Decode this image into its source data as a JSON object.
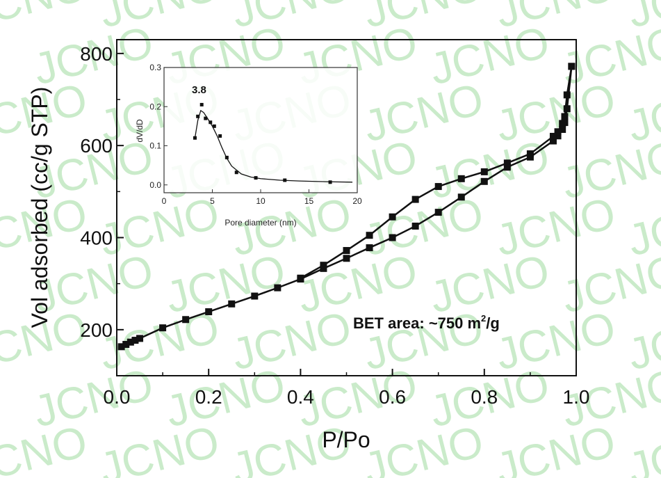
{
  "watermark": {
    "text": "JCNO",
    "color": "#9fdc9f"
  },
  "chart_data": [
    {
      "type": "line",
      "xlabel": "P/Po",
      "ylabel": "Vol adsorbed (cc/g STP)",
      "xlim": [
        0.0,
        1.0
      ],
      "ylim": [
        100,
        830
      ],
      "xticks": [
        0.0,
        0.2,
        0.4,
        0.6,
        0.8,
        1.0
      ],
      "xtick_labels": [
        "0.0",
        "0.2",
        "0.4",
        "0.6",
        "0.8",
        "1.0"
      ],
      "yticks": [
        200,
        400,
        600,
        800
      ],
      "ytick_labels": [
        "200",
        "400",
        "600",
        "800"
      ],
      "grid": false,
      "marker": "square",
      "color": "#111111",
      "annotation": {
        "text": "BET area: ~750 m",
        "sup": "2",
        "suffix": "/g"
      },
      "series": [
        {
          "x": [
            0.01,
            0.02,
            0.03,
            0.04,
            0.05,
            0.1,
            0.15,
            0.2,
            0.25,
            0.3,
            0.35,
            0.4,
            0.45,
            0.5,
            0.55,
            0.6,
            0.65,
            0.7,
            0.75,
            0.8,
            0.85,
            0.9,
            0.95,
            0.96,
            0.97,
            0.975,
            0.98,
            0.99
          ],
          "y": [
            163,
            168,
            173,
            177,
            181,
            204,
            222,
            239,
            256,
            273,
            291,
            310,
            333,
            355,
            378,
            400,
            425,
            455,
            488,
            522,
            553,
            575,
            610,
            621,
            635,
            650,
            680,
            772
          ]
        },
        {
          "x": [
            0.99,
            0.98,
            0.975,
            0.97,
            0.96,
            0.95,
            0.9,
            0.85,
            0.8,
            0.75,
            0.7,
            0.65,
            0.6,
            0.55,
            0.5,
            0.45,
            0.4
          ],
          "y": [
            772,
            710,
            663,
            648,
            630,
            620,
            582,
            562,
            543,
            528,
            511,
            483,
            445,
            405,
            372,
            340,
            312
          ]
        }
      ]
    },
    {
      "type": "line",
      "xlabel": "Pore diameter (nm)",
      "ylabel": "dV/dD",
      "xlim": [
        0,
        20
      ],
      "ylim": [
        -0.02,
        0.3
      ],
      "xticks": [
        0,
        5,
        10,
        15,
        20
      ],
      "xtick_labels": [
        "0",
        "5",
        "10",
        "15",
        "20"
      ],
      "yticks": [
        0.0,
        0.1,
        0.2,
        0.3
      ],
      "ytick_labels": [
        "0.0",
        "0.1",
        "0.2",
        "0.3"
      ],
      "grid": false,
      "peak_label": "3.8",
      "series": [
        {
          "points_x": [
            3.2,
            3.5,
            3.9,
            4.3,
            4.8,
            5.2,
            5.8,
            6.5,
            7.5,
            9.5,
            12.5,
            17.2
          ],
          "points_y": [
            0.12,
            0.175,
            0.205,
            0.17,
            0.16,
            0.15,
            0.125,
            0.07,
            0.032,
            0.018,
            0.012,
            0.007
          ],
          "curve_x": [
            3.2,
            3.5,
            3.8,
            4.1,
            4.5,
            5.0,
            5.5,
            6.0,
            6.5,
            7.0,
            8.0,
            9.0,
            10.0,
            12.0,
            14.0,
            17.0,
            19.5
          ],
          "curve_y": [
            0.12,
            0.165,
            0.19,
            0.185,
            0.17,
            0.15,
            0.125,
            0.095,
            0.068,
            0.048,
            0.028,
            0.02,
            0.016,
            0.012,
            0.01,
            0.008,
            0.007
          ]
        }
      ]
    }
  ]
}
